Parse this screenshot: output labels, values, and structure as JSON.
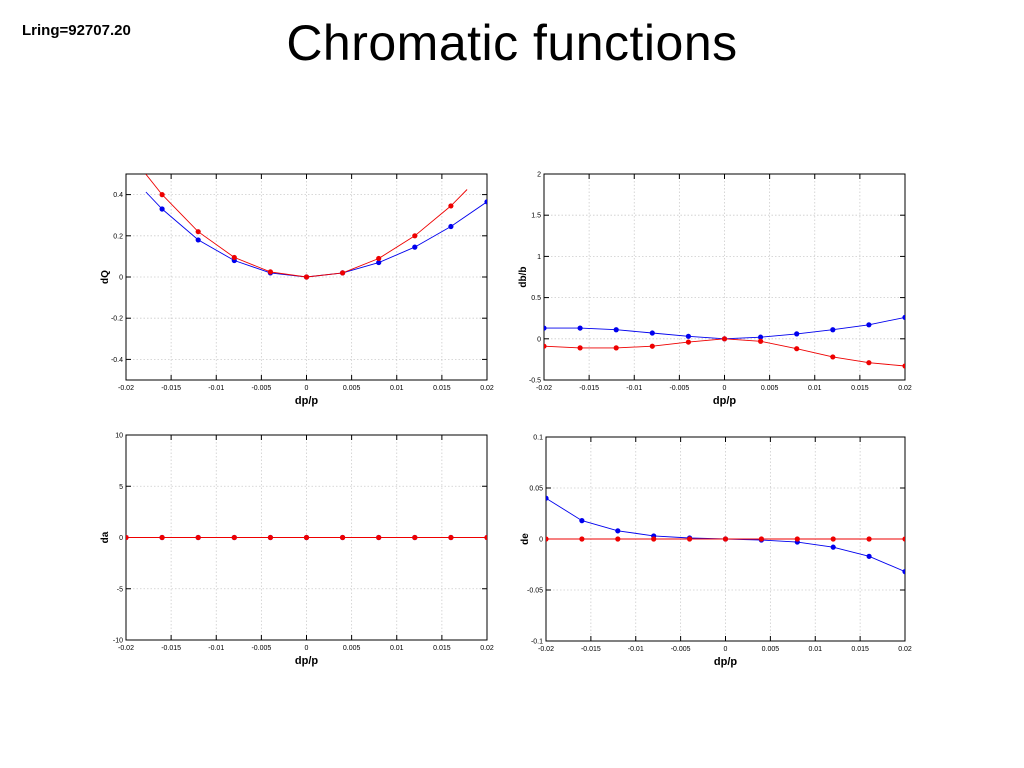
{
  "page": {
    "corner_label": "Lring=92707.20",
    "title": "Chromatic functions"
  },
  "colors": {
    "series_a": "#0000ee",
    "series_b": "#ee0000",
    "grid": "#cccccc",
    "axis": "#000000"
  },
  "chart_data": [
    {
      "type": "line",
      "ylabel": "dQ",
      "xlabel": "dp/p",
      "xlim": [
        -0.02,
        0.02
      ],
      "ylim": [
        -0.5,
        0.5
      ],
      "xticks": [
        -0.02,
        -0.015,
        -0.01,
        -0.005,
        0,
        0.005,
        0.01,
        0.015,
        0.02
      ],
      "xtick_labels": [
        "-0.02",
        "-0.015",
        "-0.01",
        "-0.005",
        "0",
        "0.005",
        "0.01",
        "0.015",
        "0.02"
      ],
      "yticks": [
        -0.4,
        -0.2,
        0,
        0.2,
        0.4
      ],
      "ytick_labels": [
        "-0.4",
        "-0.2",
        "0",
        "0.2",
        "0.4"
      ],
      "grid": true,
      "series": [
        {
          "color": "blue",
          "curve": true,
          "x": [
            -0.016,
            -0.012,
            -0.008,
            -0.004,
            0,
            0.004,
            0.008,
            0.012,
            0.016,
            0.02
          ],
          "y": [
            0.33,
            0.18,
            0.08,
            0.02,
            0,
            0.02,
            0.07,
            0.145,
            0.245,
            0.365
          ]
        },
        {
          "color": "red",
          "curve": true,
          "x": [
            -0.016,
            -0.012,
            -0.008,
            -0.004,
            0,
            0.004,
            0.008,
            0.012,
            0.016
          ],
          "y": [
            0.4,
            0.22,
            0.095,
            0.025,
            0,
            0.02,
            0.09,
            0.2,
            0.345
          ]
        }
      ]
    },
    {
      "type": "line",
      "ylabel": "db/b",
      "xlabel": "dp/p",
      "xlim": [
        -0.02,
        0.02
      ],
      "ylim": [
        -0.5,
        2
      ],
      "xticks": [
        -0.02,
        -0.015,
        -0.01,
        -0.005,
        0,
        0.005,
        0.01,
        0.015,
        0.02
      ],
      "xtick_labels": [
        "-0.02",
        "-0.015",
        "-0.01",
        "-0.005",
        "0",
        "0.005",
        "0.01",
        "0.015",
        "0.02"
      ],
      "yticks": [
        -0.5,
        0,
        0.5,
        1,
        1.5,
        2
      ],
      "ytick_labels": [
        "-0.5",
        "0",
        "0.5",
        "1",
        "1.5",
        "2"
      ],
      "grid": true,
      "series": [
        {
          "color": "blue",
          "curve": true,
          "x": [
            -0.02,
            -0.016,
            -0.012,
            -0.008,
            -0.004,
            0,
            0.004,
            0.008,
            0.012,
            0.016,
            0.02
          ],
          "y": [
            0.13,
            0.13,
            0.11,
            0.07,
            0.03,
            0,
            0.02,
            0.06,
            0.11,
            0.17,
            0.26
          ]
        },
        {
          "color": "red",
          "curve": true,
          "x": [
            -0.02,
            -0.016,
            -0.012,
            -0.008,
            -0.004,
            0,
            0.004,
            0.008,
            0.012,
            0.016,
            0.02
          ],
          "y": [
            -0.09,
            -0.11,
            -0.11,
            -0.09,
            -0.04,
            0,
            -0.03,
            -0.12,
            -0.22,
            -0.29,
            -0.33
          ]
        }
      ]
    },
    {
      "type": "line",
      "ylabel": "da",
      "xlabel": "dp/p",
      "xlim": [
        -0.02,
        0.02
      ],
      "ylim": [
        -10,
        10
      ],
      "xticks": [
        -0.02,
        -0.015,
        -0.01,
        -0.005,
        0,
        0.005,
        0.01,
        0.015,
        0.02
      ],
      "xtick_labels": [
        "-0.02",
        "-0.015",
        "-0.01",
        "-0.005",
        "0",
        "0.005",
        "0.01",
        "0.015",
        "0.02"
      ],
      "yticks": [
        -10,
        -5,
        0,
        5,
        10
      ],
      "ytick_labels": [
        "-10",
        "-5",
        "0",
        "5",
        "10"
      ],
      "grid": true,
      "series": [
        {
          "color": "blue",
          "curve": false,
          "x": [
            -0.02,
            -0.016,
            -0.012,
            -0.008,
            -0.004,
            0,
            0.004,
            0.008,
            0.012,
            0.016,
            0.02
          ],
          "y": [
            0,
            0,
            0,
            0,
            0,
            0,
            0,
            0,
            0,
            0,
            0
          ]
        },
        {
          "color": "red",
          "curve": false,
          "x": [
            -0.02,
            -0.016,
            -0.012,
            -0.008,
            -0.004,
            0,
            0.004,
            0.008,
            0.012,
            0.016,
            0.02
          ],
          "y": [
            0,
            0,
            0,
            0,
            0,
            0,
            0,
            0,
            0,
            0,
            0
          ]
        }
      ]
    },
    {
      "type": "line",
      "ylabel": "de",
      "xlabel": "dp/p",
      "xlim": [
        -0.02,
        0.02
      ],
      "ylim": [
        -0.1,
        0.1
      ],
      "xticks": [
        -0.02,
        -0.015,
        -0.01,
        -0.005,
        0,
        0.005,
        0.01,
        0.015,
        0.02
      ],
      "xtick_labels": [
        "-0.02",
        "-0.015",
        "-0.01",
        "-0.005",
        "0",
        "0.005",
        "0.01",
        "0.015",
        "0.02"
      ],
      "yticks": [
        -0.1,
        -0.05,
        0,
        0.05,
        0.1
      ],
      "ytick_labels": [
        "-0.1",
        "-0.05",
        "0",
        "0.05",
        "0.1"
      ],
      "grid": true,
      "series": [
        {
          "color": "blue",
          "curve": false,
          "x": [
            -0.02,
            -0.016,
            -0.012,
            -0.008,
            -0.004,
            0,
            0.004,
            0.008,
            0.012,
            0.016,
            0.02
          ],
          "y": [
            0.04,
            0.018,
            0.008,
            0.003,
            0.001,
            0,
            -0.001,
            -0.003,
            -0.008,
            -0.017,
            -0.032
          ]
        },
        {
          "color": "red",
          "curve": false,
          "x": [
            -0.02,
            -0.016,
            -0.012,
            -0.008,
            -0.004,
            0,
            0.004,
            0.008,
            0.012,
            0.016,
            0.02
          ],
          "y": [
            0,
            0,
            0,
            0,
            0,
            0,
            0,
            0,
            0,
            0,
            0
          ]
        }
      ]
    }
  ]
}
